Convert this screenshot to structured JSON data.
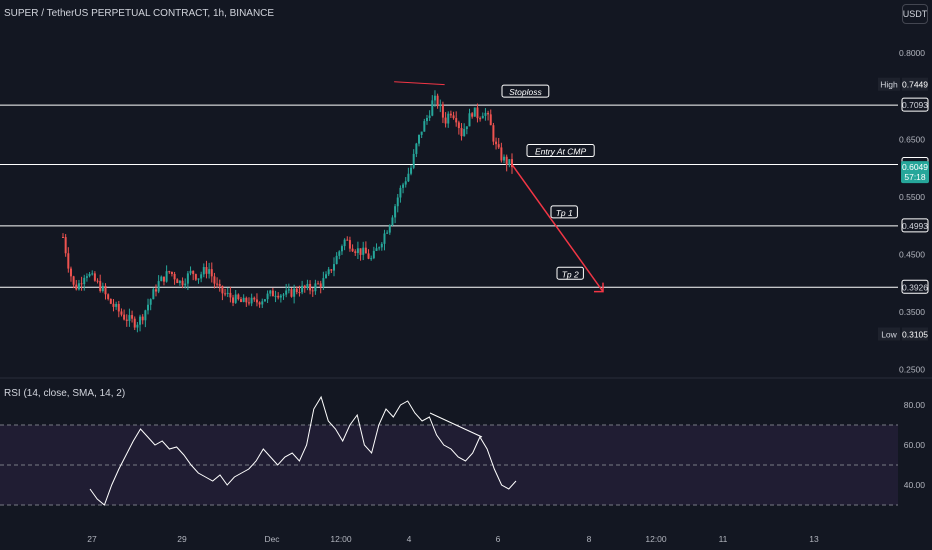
{
  "header": {
    "symbol_title": "SUPER / TetherUS PERPETUAL CONTRACT, 1h, BINANCE",
    "currency": "USDT"
  },
  "rsi": {
    "title": "RSI (14, close, SMA, 14, 2)"
  },
  "colors": {
    "background": "#131722",
    "up": "#26a69a",
    "down": "#ef5350",
    "level_line": "#ffffff",
    "arrow": "#f23645",
    "rsi_band": "#2a2240",
    "rsi_line": "#ffffff",
    "label_bg": "#ffffff"
  },
  "chart_data": [
    {
      "type": "candlestick",
      "title": "SUPER / TetherUS PERPETUAL CONTRACT, 1h, BINANCE",
      "y_axis": {
        "ticks": [
          "0.8000",
          "0.6500",
          "0.5500",
          "0.4500",
          "0.3500",
          "0.2500"
        ],
        "ylim": [
          0.24,
          0.84
        ]
      },
      "x_axis": {
        "ticks": [
          "27",
          "29",
          "Dec",
          "12:00",
          "4",
          "6",
          "8",
          "12:00",
          "11",
          "13"
        ]
      },
      "price_path": [
        [
          0,
          0.48
        ],
        [
          1,
          0.43
        ],
        [
          2,
          0.39
        ],
        [
          3,
          0.4
        ],
        [
          4,
          0.42
        ],
        [
          5,
          0.41
        ],
        [
          6,
          0.4
        ],
        [
          7,
          0.39
        ],
        [
          8,
          0.37
        ],
        [
          9,
          0.36
        ],
        [
          10,
          0.35
        ],
        [
          11,
          0.34
        ],
        [
          12,
          0.335
        ],
        [
          13,
          0.33
        ],
        [
          14,
          0.34
        ],
        [
          15,
          0.36
        ],
        [
          16,
          0.38
        ],
        [
          17,
          0.4
        ],
        [
          18,
          0.41
        ],
        [
          19,
          0.42
        ],
        [
          20,
          0.41
        ],
        [
          21,
          0.4
        ],
        [
          22,
          0.41
        ],
        [
          23,
          0.42
        ],
        [
          24,
          0.41
        ],
        [
          25,
          0.42
        ],
        [
          26,
          0.425
        ],
        [
          27,
          0.4
        ],
        [
          28,
          0.385
        ],
        [
          29,
          0.38
        ],
        [
          30,
          0.375
        ],
        [
          31,
          0.37
        ],
        [
          32,
          0.365
        ],
        [
          33,
          0.37
        ],
        [
          34,
          0.365
        ],
        [
          35,
          0.37
        ],
        [
          36,
          0.375
        ],
        [
          37,
          0.38
        ],
        [
          38,
          0.385
        ],
        [
          39,
          0.38
        ],
        [
          40,
          0.38
        ],
        [
          41,
          0.385
        ],
        [
          42,
          0.39
        ],
        [
          43,
          0.39
        ],
        [
          44,
          0.39
        ],
        [
          45,
          0.395
        ],
        [
          46,
          0.4
        ],
        [
          47,
          0.41
        ],
        [
          48,
          0.43
        ],
        [
          49,
          0.45
        ],
        [
          50,
          0.475
        ],
        [
          51,
          0.47
        ],
        [
          52,
          0.46
        ],
        [
          53,
          0.455
        ],
        [
          54,
          0.45
        ],
        [
          55,
          0.44
        ],
        [
          56,
          0.46
        ],
        [
          57,
          0.48
        ],
        [
          58,
          0.5
        ],
        [
          59,
          0.53
        ],
        [
          60,
          0.56
        ],
        [
          61,
          0.58
        ],
        [
          62,
          0.6
        ],
        [
          63,
          0.64
        ],
        [
          64,
          0.67
        ],
        [
          65,
          0.69
        ],
        [
          66,
          0.72
        ],
        [
          67,
          0.71
        ],
        [
          68,
          0.68
        ],
        [
          69,
          0.7
        ],
        [
          70,
          0.69
        ],
        [
          71,
          0.66
        ],
        [
          72,
          0.68
        ],
        [
          73,
          0.7
        ],
        [
          74,
          0.69
        ],
        [
          75,
          0.7
        ],
        [
          76,
          0.68
        ],
        [
          77,
          0.64
        ],
        [
          78,
          0.62
        ],
        [
          79,
          0.61
        ],
        [
          80,
          0.605
        ]
      ],
      "levels": [
        {
          "value": 0.7093,
          "label": "0.7093"
        },
        {
          "value": 0.606,
          "label": "0.6060"
        },
        {
          "value": 0.4993,
          "label": "0.4993"
        },
        {
          "value": 0.3926,
          "label": "0.3926"
        }
      ],
      "price_labels": {
        "high": {
          "text": "High",
          "value": 0.7449,
          "label": "0.7449"
        },
        "low": {
          "text": "Low",
          "value": 0.3105,
          "label": "0.3105"
        },
        "current": {
          "value": 0.6049,
          "label": "0.6049",
          "countdown": "57:18"
        }
      },
      "annotations": [
        {
          "text": "Stoploss"
        },
        {
          "text": "Entry At CMP"
        },
        {
          "text": "Tp 1"
        },
        {
          "text": "Tp 2"
        }
      ],
      "arrow": {
        "from_value": 0.606,
        "to_value": 0.385
      }
    },
    {
      "type": "line",
      "title": "RSI (14, close, SMA, 14, 2)",
      "y_axis": {
        "ticks": [
          "80.00",
          "60.00",
          "40.00"
        ],
        "ylim": [
          20,
          90
        ],
        "band": [
          30,
          70
        ]
      },
      "values": [
        [
          0,
          38
        ],
        [
          1,
          33
        ],
        [
          2,
          30
        ],
        [
          3,
          40
        ],
        [
          4,
          48
        ],
        [
          5,
          55
        ],
        [
          6,
          62
        ],
        [
          7,
          68
        ],
        [
          8,
          64
        ],
        [
          9,
          60
        ],
        [
          10,
          62
        ],
        [
          11,
          58
        ],
        [
          12,
          59
        ],
        [
          13,
          55
        ],
        [
          14,
          50
        ],
        [
          15,
          46
        ],
        [
          16,
          44
        ],
        [
          17,
          42
        ],
        [
          18,
          45
        ],
        [
          19,
          40
        ],
        [
          20,
          44
        ],
        [
          21,
          46
        ],
        [
          22,
          48
        ],
        [
          23,
          52
        ],
        [
          24,
          58
        ],
        [
          25,
          54
        ],
        [
          26,
          50
        ],
        [
          27,
          54
        ],
        [
          28,
          56
        ],
        [
          29,
          52
        ],
        [
          30,
          60
        ],
        [
          31,
          78
        ],
        [
          32,
          84
        ],
        [
          33,
          72
        ],
        [
          34,
          68
        ],
        [
          35,
          62
        ],
        [
          36,
          70
        ],
        [
          37,
          75
        ],
        [
          38,
          60
        ],
        [
          39,
          56
        ],
        [
          40,
          70
        ],
        [
          41,
          78
        ],
        [
          42,
          74
        ],
        [
          43,
          80
        ],
        [
          44,
          82
        ],
        [
          45,
          76
        ],
        [
          46,
          72
        ],
        [
          47,
          74
        ],
        [
          48,
          65
        ],
        [
          49,
          60
        ],
        [
          50,
          58
        ],
        [
          51,
          54
        ],
        [
          52,
          52
        ],
        [
          53,
          56
        ],
        [
          54,
          64
        ],
        [
          55,
          58
        ],
        [
          56,
          48
        ],
        [
          57,
          40
        ],
        [
          58,
          38
        ],
        [
          59,
          42
        ]
      ]
    }
  ]
}
